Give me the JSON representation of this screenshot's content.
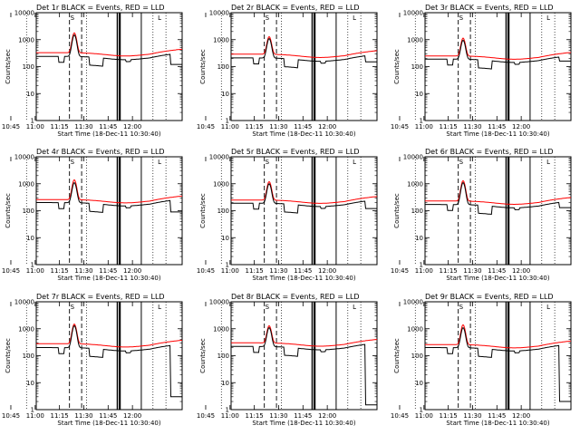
{
  "chart_data": {
    "type": "line",
    "layout": {
      "rows": 3,
      "cols": 3
    },
    "x_ticks": [
      "10:45",
      "11:00",
      "11:15",
      "11:30",
      "11:45",
      "12:00"
    ],
    "x_range_minutes": [
      30,
      120
    ],
    "xlabel": "Start Time (18-Dec-11 10:30:40)",
    "ylabel": "Counts/sec",
    "yscale": "log",
    "ylim": [
      1,
      10000
    ],
    "y_ticks": [
      "1",
      "10",
      "100",
      "1000",
      "10000"
    ],
    "flare_marker_labels": [
      "S",
      "L"
    ],
    "series_colors": {
      "events": "#000000",
      "lld": "#ff0000"
    },
    "panels": [
      {
        "title": "Det 1r BLACK = Events, RED = LLD",
        "events_baseline": 240,
        "lld_baseline": 330,
        "peak_events": 1500,
        "peak_lld": 1800,
        "end_drop": 120
      },
      {
        "title": "Det 2r BLACK = Events, RED = LLD",
        "events_baseline": 210,
        "lld_baseline": 290,
        "peak_events": 1100,
        "peak_lld": 1300,
        "end_drop": 150
      },
      {
        "title": "Det 3r BLACK = Events, RED = LLD",
        "events_baseline": 190,
        "lld_baseline": 250,
        "peak_events": 950,
        "peak_lld": 1150,
        "end_drop": 160
      },
      {
        "title": "Det 4r BLACK = Events, RED = LLD",
        "events_baseline": 200,
        "lld_baseline": 260,
        "peak_events": 1100,
        "peak_lld": 1400,
        "end_drop": 90
      },
      {
        "title": "Det 5r BLACK = Events, RED = LLD",
        "events_baseline": 190,
        "lld_baseline": 250,
        "peak_events": 1000,
        "peak_lld": 1200,
        "end_drop": 120
      },
      {
        "title": "Det 6r BLACK = Events, RED = LLD",
        "events_baseline": 170,
        "lld_baseline": 230,
        "peak_events": 1100,
        "peak_lld": 1300,
        "end_drop": 130
      },
      {
        "title": "Det 7r BLACK = Events, RED = LLD",
        "events_baseline": 200,
        "lld_baseline": 280,
        "peak_events": 1300,
        "peak_lld": 1500,
        "end_drop": 3
      },
      {
        "title": "Det 8r BLACK = Events, RED = LLD",
        "events_baseline": 220,
        "lld_baseline": 300,
        "peak_events": 1100,
        "peak_lld": 1300,
        "end_drop": 1.5
      },
      {
        "title": "Det 9r BLACK = Events, RED = LLD",
        "events_baseline": 200,
        "lld_baseline": 260,
        "peak_events": 1100,
        "peak_lld": 1400,
        "end_drop": 2
      }
    ]
  }
}
